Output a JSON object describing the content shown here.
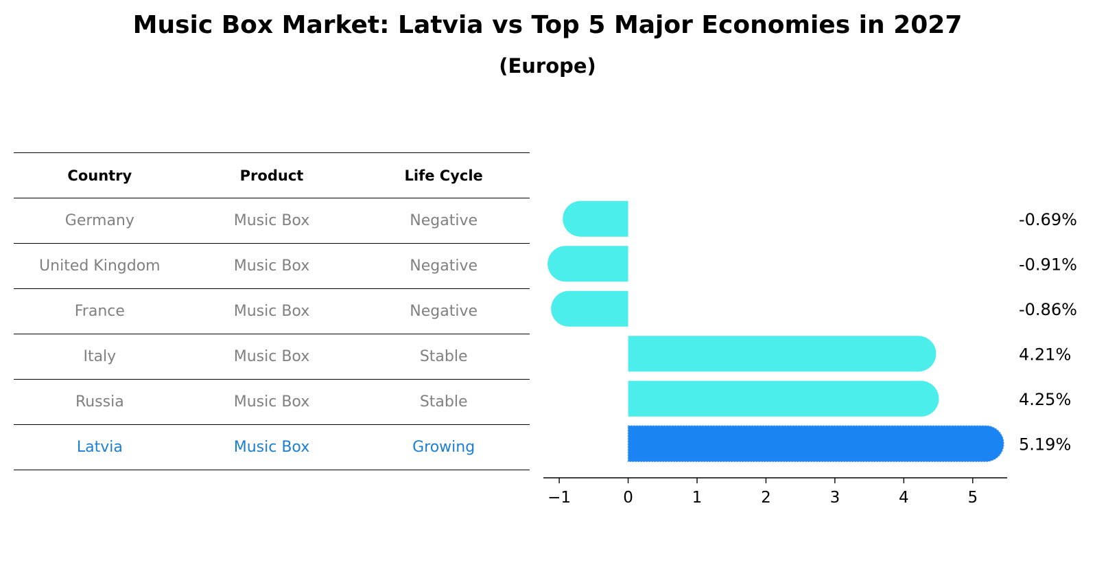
{
  "header": {
    "title": "Music Box Market: Latvia vs Top 5 Major Economies in 2027",
    "subtitle": "(Europe)"
  },
  "table": {
    "columns": [
      "Country",
      "Product",
      "Life Cycle"
    ],
    "rows": [
      {
        "country": "Germany",
        "product": "Music Box",
        "life_cycle": "Negative"
      },
      {
        "country": "United Kingdom",
        "product": "Music Box",
        "life_cycle": "Negative"
      },
      {
        "country": "France",
        "product": "Music Box",
        "life_cycle": "Negative"
      },
      {
        "country": "Italy",
        "product": "Music Box",
        "life_cycle": "Stable"
      },
      {
        "country": "Russia",
        "product": "Music Box",
        "life_cycle": "Stable"
      },
      {
        "country": "Latvia",
        "product": "Music Box",
        "life_cycle": "Growing"
      }
    ],
    "highlight_row": 5
  },
  "colors": {
    "bar": "#4ceeec",
    "bar_highlight": "#1a85f2",
    "text_muted": "#808080",
    "text_highlight": "#1a7fd4"
  },
  "chart_data": {
    "type": "bar",
    "orientation": "horizontal",
    "categories": [
      "Germany",
      "United Kingdom",
      "France",
      "Italy",
      "Russia",
      "Latvia"
    ],
    "values": [
      -0.69,
      -0.91,
      -0.86,
      4.21,
      4.25,
      5.19
    ],
    "value_labels": [
      "-0.69%",
      "-0.91%",
      "-0.86%",
      "4.21%",
      "4.25%",
      "5.19%"
    ],
    "highlight_index": 5,
    "xlim": [
      -1.23,
      5.5
    ],
    "xticks": [
      -1,
      0,
      1,
      2,
      3,
      4,
      5
    ],
    "xtick_labels": [
      "−1",
      "0",
      "1",
      "2",
      "3",
      "4",
      "5"
    ],
    "bar_ends": "rounded",
    "grid": false
  }
}
